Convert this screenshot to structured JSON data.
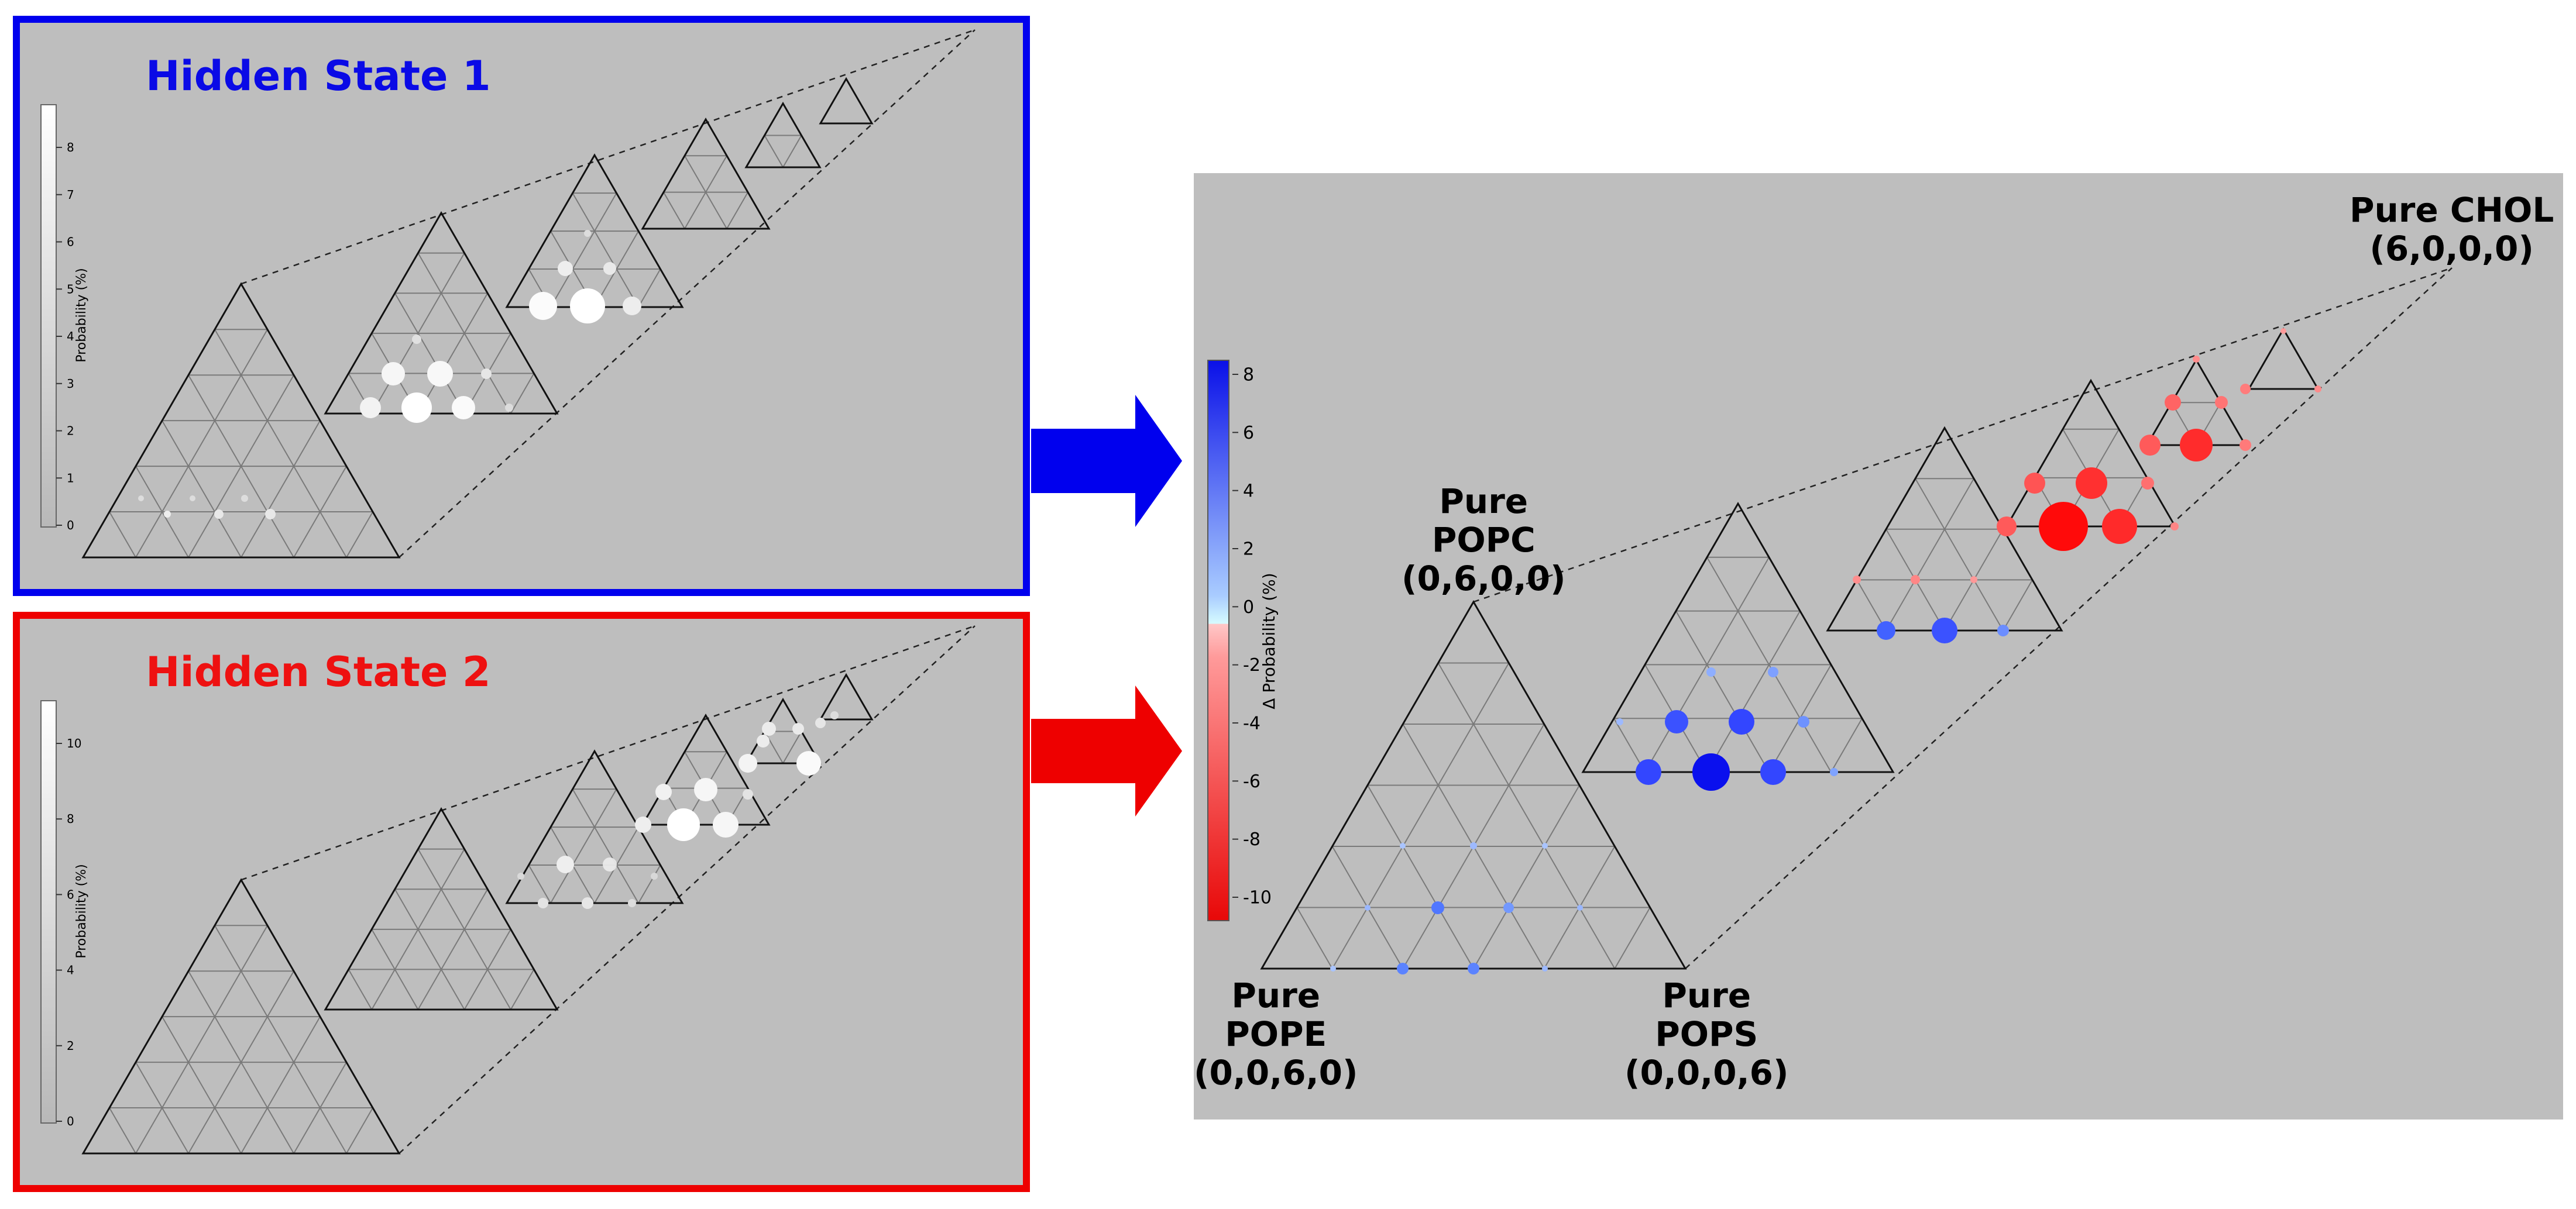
{
  "hidden_state_1": {
    "title": "Hidden State 1",
    "title_color": "#0a0ae6",
    "border_color": "#0000ee",
    "colorbar_label": "Probability (%)",
    "colorbar_ticks": [
      "0",
      "1",
      "2",
      "3",
      "4",
      "5",
      "6",
      "7",
      "8"
    ]
  },
  "hidden_state_2": {
    "title": "Hidden State 2",
    "title_color": "#ee1111",
    "border_color": "#ee0000",
    "colorbar_label": "Probability (%)",
    "colorbar_ticks": [
      "0",
      "2",
      "4",
      "6",
      "8",
      "10"
    ]
  },
  "difference": {
    "colorbar_label": "Δ Probability (%)",
    "colorbar_ticks": [
      "8",
      "6",
      "4",
      "2",
      "0",
      "-2",
      "-4",
      "-6",
      "-8",
      "-10"
    ],
    "vertex_labels": {
      "chol": "Pure CHOL\n(6,0,0,0)",
      "popc": "Pure\nPOPC\n(0,6,0,0)",
      "pope": "Pure\nPOPE\n(0,0,6,0)",
      "pops": "Pure\nPOPS\n(0,0,0,6)"
    }
  },
  "colors": {
    "panel_bg": "#bebebe",
    "arrow_blue": "#0000ee",
    "arrow_red": "#ee0000",
    "positive": "#1f2cff",
    "negative": "#ff2020"
  }
}
